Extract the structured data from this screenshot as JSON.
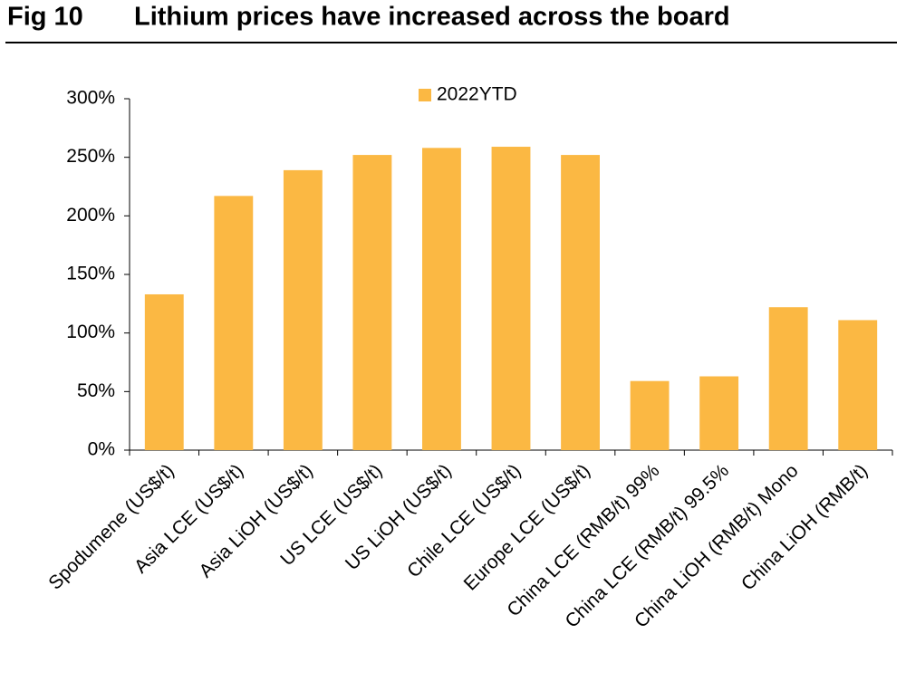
{
  "chart_data": {
    "type": "bar",
    "figure_label": "Fig 10",
    "title": "Lithium prices have increased across the board",
    "categories": [
      "Spodumene (US$/t)",
      "Asia LCE (US$/t)",
      "Asia LiOH (US$/t)",
      "US LCE (US$/t)",
      "US LiOH (US$/t)",
      "Chile LCE (US$/t)",
      "Europe LCE (US$/t)",
      "China LCE (RMB/t) 99%",
      "China LCE (RMB/t) 99.5%",
      "China LiOH (RMB/t) Mono",
      "China LiOH (RMB/t)"
    ],
    "series": [
      {
        "name": "2022YTD",
        "color": "#fbb843",
        "values": [
          133,
          217,
          239,
          252,
          258,
          259,
          252,
          59,
          63,
          122,
          111
        ]
      }
    ],
    "ylim": [
      0,
      300
    ],
    "yticks": [
      {
        "value": 0,
        "label": "0%"
      },
      {
        "value": 50,
        "label": "50%"
      },
      {
        "value": 100,
        "label": "100%"
      },
      {
        "value": 150,
        "label": "150%"
      },
      {
        "value": 200,
        "label": "200%"
      },
      {
        "value": 250,
        "label": "250%"
      },
      {
        "value": 300,
        "label": "300%"
      }
    ],
    "legend": "top"
  }
}
